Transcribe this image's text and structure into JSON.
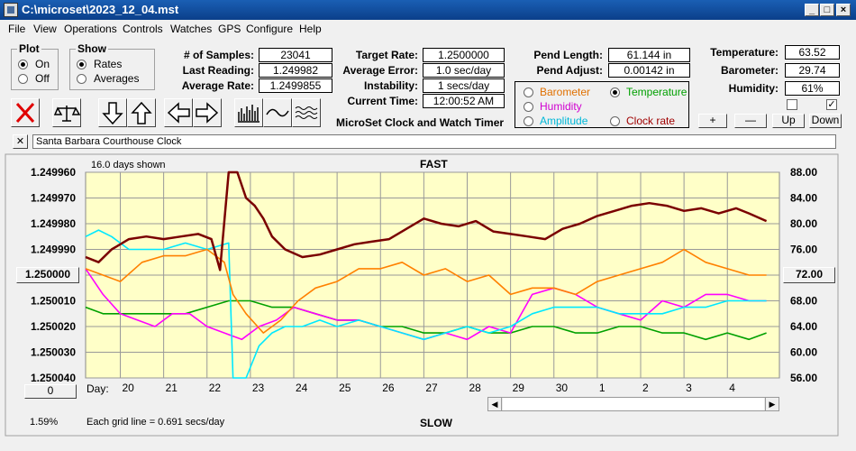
{
  "window": {
    "title": "C:\\microset\\2023_12_04.mst"
  },
  "menu": [
    "File",
    "View",
    "Operations",
    "Controls",
    "Watches",
    "GPS",
    "Configure",
    "Help"
  ],
  "plot_group": {
    "title": "Plot",
    "on": "On",
    "off": "Off",
    "selected": "On"
  },
  "show_group": {
    "title": "Show",
    "rates": "Rates",
    "averages": "Averages",
    "selected": "Rates"
  },
  "stats": {
    "samples_label": "# of Samples:",
    "samples": "23041",
    "last_label": "Last Reading:",
    "last": "1.249982",
    "avg_label": "Average Rate:",
    "avg": "1.2499855",
    "target_label": "Target Rate:",
    "target": "1.2500000",
    "avgerr_label": "Average Error:",
    "avgerr": "1.0 sec/day",
    "instab_label": "Instability:",
    "instab": "1 secs/day",
    "time_label": "Current Time:",
    "time": "12:00:52 AM",
    "pendlen_label": "Pend Length:",
    "pendlen": "61.144 in",
    "pendadj_label": "Pend Adjust:",
    "pendadj": "0.00142 in",
    "temp_label": "Temperature:",
    "temp": "63.52",
    "baro_label": "Barometer:",
    "baro": "29.74",
    "hum_label": "Humidity:",
    "hum": "61%"
  },
  "app_title": "MicroSet Clock and Watch Timer",
  "aux_select": {
    "barometer": "Barometer",
    "temperature": "Temperature",
    "humidity": "Humidity",
    "amplitude": "Amplitude",
    "clock_rate": "Clock rate",
    "selected": "Temperature"
  },
  "aux_buttons": {
    "plus": "+",
    "minus": "—",
    "up": "Up",
    "down": "Down"
  },
  "toolbar_icons": [
    "clear-icon",
    "balance-icon",
    "arrow-down-icon",
    "arrow-up-icon",
    "arrow-left-icon",
    "arrow-right-icon",
    "histogram-icon",
    "wave-icon",
    "waves-icon"
  ],
  "description": {
    "close": "✕",
    "text": "Santa Barbara Courthouse Clock"
  },
  "chart_labels": {
    "days_shown": "16.0 days shown",
    "fast": "FAST",
    "slow": "SLOW",
    "day_label": "Day:",
    "grid_note": "Each grid line = 0.691 secs/day",
    "percent": "1.59%",
    "left_button": "0",
    "center_button": "1.250000",
    "right_button": "72.00"
  },
  "colors": {
    "plot_bg": "#ffffc8",
    "rate": "#7a0000",
    "temperature": "#ff8000",
    "humidity": "#ff00ff",
    "amplitude": "#00e8ff",
    "barometer": "#00a000"
  },
  "chart_data": {
    "type": "line",
    "x_ticks": [
      "20",
      "21",
      "22",
      "23",
      "24",
      "25",
      "26",
      "27",
      "28",
      "29",
      "30",
      "1",
      "2",
      "3",
      "4"
    ],
    "y_left_ticks": [
      "1.249960",
      "1.249970",
      "1.249980",
      "1.249990",
      "1.250000",
      "1.250010",
      "1.250020",
      "1.250030",
      "1.250040"
    ],
    "y_right_ticks": [
      "88.00",
      "84.00",
      "80.00",
      "76.00",
      "72.00",
      "68.00",
      "64.00",
      "60.00",
      "56.00"
    ],
    "xlim": [
      19.2,
      35.2
    ],
    "ylim_left": [
      1.24996,
      1.25004
    ],
    "ylim_right": [
      56,
      88
    ],
    "grid": true,
    "series": [
      {
        "key": "rate",
        "axis": "left",
        "x": [
          19.2,
          19.5,
          19.8,
          20.2,
          20.6,
          21.0,
          21.4,
          21.8,
          22.1,
          22.3,
          22.5,
          22.7,
          22.9,
          23.1,
          23.3,
          23.5,
          23.8,
          24.2,
          24.6,
          25.0,
          25.4,
          25.8,
          26.2,
          26.6,
          27.0,
          27.4,
          27.8,
          28.2,
          28.6,
          29.0,
          29.4,
          29.8,
          30.2,
          30.6,
          31.0,
          31.4,
          31.8,
          32.2,
          32.6,
          33.0,
          33.4,
          33.8,
          34.2,
          34.5,
          34.9
        ],
        "y": [
          1.249993,
          1.249995,
          1.24999,
          1.249986,
          1.249985,
          1.249986,
          1.249985,
          1.249984,
          1.249986,
          1.249998,
          1.24996,
          1.24996,
          1.24997,
          1.249973,
          1.249978,
          1.249985,
          1.24999,
          1.249993,
          1.249992,
          1.24999,
          1.249988,
          1.249987,
          1.249986,
          1.249982,
          1.249978,
          1.24998,
          1.249981,
          1.249979,
          1.249983,
          1.249984,
          1.249985,
          1.249986,
          1.249982,
          1.24998,
          1.249977,
          1.249975,
          1.249973,
          1.249972,
          1.249973,
          1.249975,
          1.249974,
          1.249976,
          1.249974,
          1.249976,
          1.249979
        ]
      },
      {
        "key": "temperature",
        "axis": "right",
        "x": [
          19.2,
          19.6,
          20.0,
          20.5,
          21.0,
          21.5,
          22.0,
          22.4,
          22.6,
          22.9,
          23.3,
          23.7,
          24.1,
          24.5,
          25.0,
          25.5,
          26.0,
          26.5,
          27.0,
          27.5,
          28.0,
          28.5,
          29.0,
          29.5,
          30.0,
          30.5,
          31.0,
          31.5,
          32.0,
          32.5,
          33.0,
          33.5,
          34.0,
          34.5,
          34.9
        ],
        "y": [
          73,
          72,
          71,
          74,
          75,
          75,
          76,
          74,
          69,
          66,
          63,
          65,
          68,
          70,
          71,
          73,
          73,
          74,
          72,
          73,
          71,
          72,
          69,
          70,
          70,
          69,
          71,
          72,
          73,
          74,
          76,
          74,
          73,
          72,
          72
        ]
      },
      {
        "key": "humidity",
        "axis": "right",
        "x": [
          19.2,
          19.6,
          20.0,
          20.4,
          20.8,
          21.2,
          21.6,
          22.0,
          22.4,
          22.8,
          23.2,
          23.6,
          24.0,
          24.5,
          25.0,
          25.5,
          26.0,
          26.5,
          27.0,
          27.5,
          28.0,
          28.5,
          29.0,
          29.5,
          30.0,
          30.5,
          31.0,
          31.5,
          32.0,
          32.5,
          33.0,
          33.5,
          34.0,
          34.5,
          34.9
        ],
        "y": [
          73,
          69,
          66,
          65,
          64,
          66,
          66,
          64,
          63,
          62,
          64,
          65,
          67,
          66,
          65,
          65,
          64,
          63,
          62,
          63,
          62,
          64,
          63,
          69,
          70,
          69,
          67,
          66,
          65,
          68,
          67,
          69,
          69,
          68,
          68
        ]
      },
      {
        "key": "amplitude",
        "axis": "right",
        "x": [
          19.2,
          19.5,
          19.8,
          20.2,
          20.6,
          21.0,
          21.5,
          22.0,
          22.5,
          22.6,
          22.9,
          23.2,
          23.5,
          23.8,
          24.2,
          24.6,
          25.0,
          25.5,
          26.0,
          26.5,
          27.0,
          27.5,
          28.0,
          28.5,
          29.0,
          29.5,
          30.0,
          30.5,
          31.0,
          31.5,
          32.0,
          32.5,
          33.0,
          33.5,
          34.0,
          34.5,
          34.9
        ],
        "y": [
          78,
          79,
          78,
          76,
          76,
          76,
          77,
          76,
          77,
          56,
          56,
          61,
          63,
          64,
          64,
          65,
          64,
          65,
          64,
          63,
          62,
          63,
          64,
          63,
          64,
          66,
          67,
          67,
          67,
          66,
          66,
          66,
          67,
          67,
          68,
          68,
          68
        ]
      },
      {
        "key": "barometer",
        "axis": "right",
        "x": [
          19.2,
          19.6,
          20.0,
          20.5,
          21.0,
          21.5,
          22.0,
          22.5,
          23.0,
          23.5,
          24.0,
          24.5,
          25.0,
          25.5,
          26.0,
          26.5,
          27.0,
          27.5,
          28.0,
          28.5,
          29.0,
          29.5,
          30.0,
          30.5,
          31.0,
          31.5,
          32.0,
          32.5,
          33.0,
          33.5,
          34.0,
          34.5,
          34.9
        ],
        "y": [
          67,
          66,
          66,
          66,
          66,
          66,
          67,
          68,
          68,
          67,
          67,
          66,
          65,
          65,
          64,
          64,
          63,
          63,
          64,
          63,
          63,
          64,
          64,
          63,
          63,
          64,
          64,
          63,
          63,
          62,
          63,
          62,
          63
        ]
      }
    ]
  }
}
